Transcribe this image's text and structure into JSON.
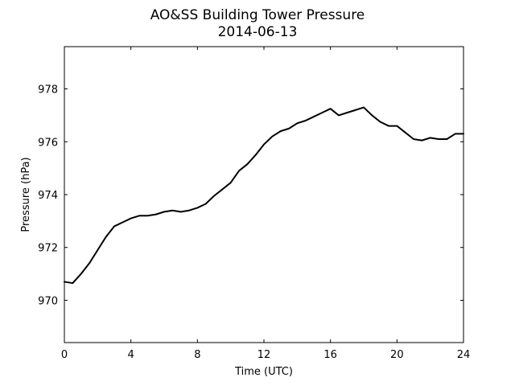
{
  "chart_data": {
    "type": "line",
    "title": "AO&SS Building Tower Pressure",
    "subtitle": "2014-06-13",
    "xlabel": "Time (UTC)",
    "ylabel": "Pressure (hPa)",
    "xlim": [
      0,
      24
    ],
    "ylim": [
      968.4,
      979.6
    ],
    "xticks": [
      "0",
      "4",
      "8",
      "12",
      "16",
      "20",
      "24"
    ],
    "yticks": [
      "970",
      "972",
      "974",
      "976",
      "978"
    ],
    "grid": false,
    "line_color": "#000000",
    "series": [
      {
        "x": [
          0,
          0.5,
          1,
          1.5,
          2,
          2.5,
          3,
          3.5,
          4,
          4.5,
          5,
          5.5,
          6,
          6.5,
          7,
          7.5,
          8,
          8.5,
          9,
          9.5,
          10,
          10.5,
          11,
          11.5,
          12,
          12.5,
          13,
          13.5,
          14,
          14.5,
          15,
          15.5,
          16,
          16.5,
          17,
          17.5,
          18,
          18.5,
          19,
          19.5,
          20,
          20.5,
          21,
          21.5,
          22,
          22.5,
          23,
          23.5,
          24
        ],
        "y": [
          970.7,
          970.65,
          971.0,
          971.4,
          971.9,
          972.4,
          972.8,
          972.95,
          973.1,
          973.2,
          973.2,
          973.25,
          973.35,
          973.4,
          973.35,
          973.4,
          973.5,
          973.65,
          973.95,
          974.2,
          974.45,
          974.9,
          975.15,
          975.5,
          975.9,
          976.2,
          976.4,
          976.5,
          976.7,
          976.8,
          976.95,
          977.1,
          977.25,
          977.0,
          977.1,
          977.2,
          977.3,
          977.0,
          976.75,
          976.6,
          976.6,
          976.35,
          976.1,
          976.05,
          976.15,
          976.1,
          976.1,
          976.3,
          976.3
        ]
      }
    ]
  }
}
